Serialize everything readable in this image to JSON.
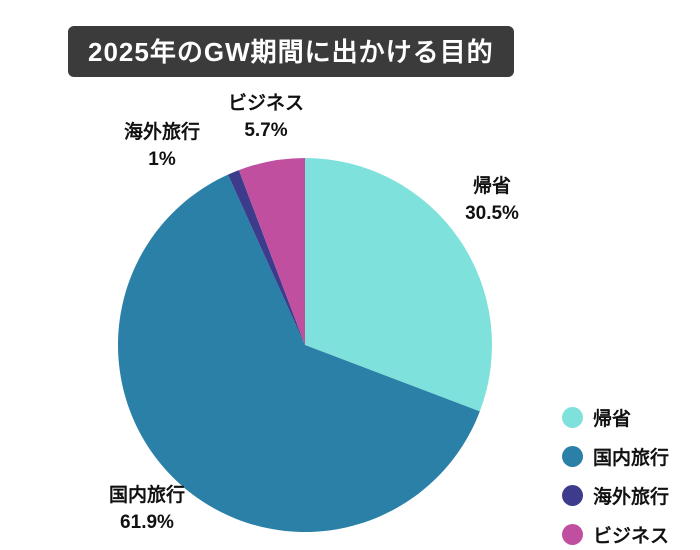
{
  "title": "2025年のGW期間に出かける目的",
  "chart_data": {
    "type": "pie",
    "title": "2025年のGW期間に出かける目的",
    "categories": [
      "帰省",
      "国内旅行",
      "海外旅行",
      "ビジネス"
    ],
    "values": [
      30.5,
      61.9,
      1,
      5.7
    ],
    "value_labels": [
      "30.5%",
      "61.9%",
      "1%",
      "5.7%"
    ],
    "colors": [
      "#7ee1dc",
      "#2a80a6",
      "#3d3c8c",
      "#c04fa0"
    ],
    "ids": [
      "kisei",
      "kokunai",
      "kaigai",
      "business"
    ],
    "start_angle_deg": -90,
    "direction": "clockwise",
    "legend_position": "bottom-right",
    "background": "#ffffff",
    "title_bar_color": "#3b3b3b"
  }
}
